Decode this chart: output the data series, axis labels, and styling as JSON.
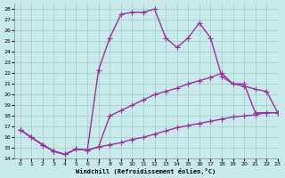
{
  "xlabel": "Windchill (Refroidissement éolien,°C)",
  "ylabel": "",
  "xlim": [
    -0.5,
    23
  ],
  "ylim": [
    14,
    28.5
  ],
  "yticks": [
    14,
    15,
    16,
    17,
    18,
    19,
    20,
    21,
    22,
    23,
    24,
    25,
    26,
    27,
    28
  ],
  "xticks": [
    0,
    1,
    2,
    3,
    4,
    5,
    6,
    7,
    8,
    9,
    10,
    11,
    12,
    13,
    14,
    15,
    16,
    17,
    18,
    19,
    20,
    21,
    22,
    23
  ],
  "background_color": "#c8eaea",
  "grid_color": "#a0c8c8",
  "line_color": "#993399",
  "line_width": 1.0,
  "marker": "+",
  "marker_size": 4,
  "series": [
    {
      "x": [
        0,
        1,
        2,
        3,
        4,
        5,
        6,
        7,
        8,
        9,
        10,
        11,
        12,
        13,
        14,
        15,
        16,
        17,
        18,
        19,
        20,
        21,
        22,
        23
      ],
      "y": [
        16.7,
        16.0,
        15.3,
        14.7,
        14.4,
        14.9,
        14.8,
        15.1,
        15.3,
        15.5,
        15.8,
        16.0,
        16.3,
        16.6,
        16.9,
        17.1,
        17.3,
        17.5,
        17.7,
        17.9,
        18.0,
        18.1,
        18.3,
        18.3
      ]
    },
    {
      "x": [
        0,
        1,
        2,
        3,
        4,
        5,
        6,
        7,
        8,
        9,
        10,
        11,
        12,
        13,
        14,
        15,
        16,
        17,
        18,
        19,
        20,
        21,
        22,
        23
      ],
      "y": [
        16.7,
        16.0,
        15.3,
        14.7,
        14.4,
        14.9,
        14.8,
        15.1,
        18.0,
        18.5,
        19.0,
        19.5,
        20.0,
        20.3,
        20.6,
        21.0,
        21.3,
        21.6,
        22.0,
        21.0,
        20.8,
        20.5,
        20.3,
        18.3
      ]
    },
    {
      "x": [
        0,
        1,
        2,
        3,
        4,
        5,
        6,
        7,
        8,
        9,
        10,
        11,
        12,
        13,
        14,
        15,
        16,
        17,
        18,
        19,
        20,
        21,
        22,
        23
      ],
      "y": [
        16.7,
        16.0,
        15.3,
        14.7,
        14.4,
        14.9,
        14.8,
        22.3,
        25.3,
        27.5,
        27.7,
        27.7,
        28.0,
        25.3,
        24.4,
        25.3,
        26.7,
        25.3,
        21.7,
        21.0,
        21.0,
        18.3,
        18.3,
        18.3
      ]
    }
  ]
}
